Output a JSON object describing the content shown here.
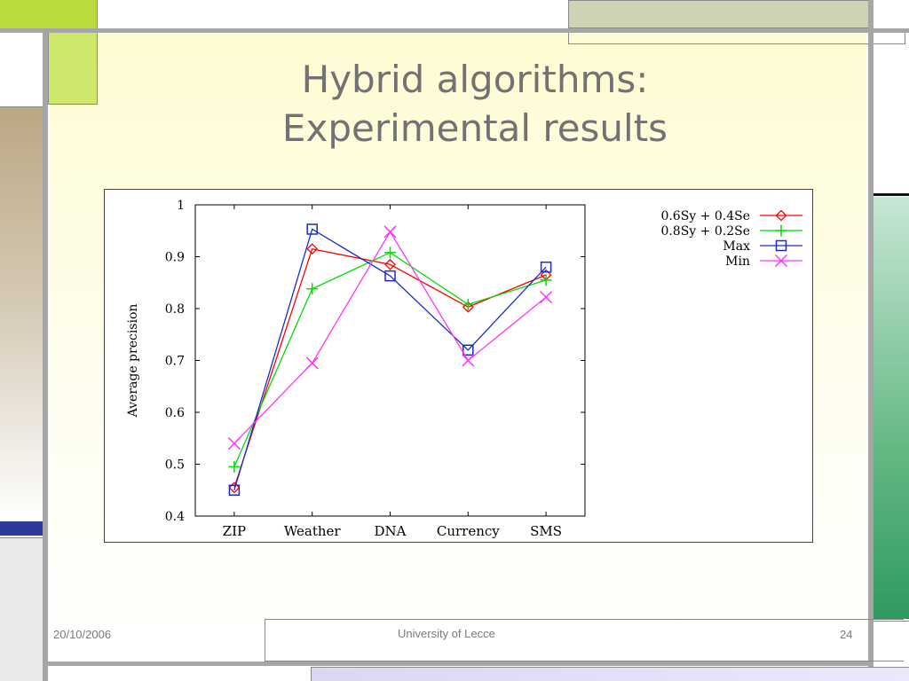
{
  "slide": {
    "title": "Hybrid algorithms:\nExperimental results",
    "footer": {
      "date": "20/10/2006",
      "organization": "University of Lecce",
      "page_number": "24"
    }
  },
  "colors": {
    "series_red": "#ff0000",
    "series_green": "#00dd00",
    "series_blue": "#1a2ccc",
    "series_magenta": "#ff33ff",
    "accent_green": "#cde86a",
    "accent_olive": "#d0d2b4",
    "accent_navy": "#2c3a9a",
    "accent_teal": "#2f9a60",
    "accent_tan": "#c2ad8e"
  },
  "chart_data": {
    "type": "line",
    "categories": [
      "ZIP",
      "Weather",
      "DNA",
      "Currency",
      "SMS"
    ],
    "ylabel": "Average precision",
    "xlabel": "",
    "ylim": [
      0.4,
      1.0
    ],
    "yticks": [
      "0.4",
      "0.5",
      "0.6",
      "0.7",
      "0.8",
      "0.9",
      "1"
    ],
    "legend_position": "top-right, outside plot",
    "grid": false,
    "series": [
      {
        "name": "0.6Sy + 0.4Se",
        "marker": "diamond",
        "color": "#ff0000",
        "values": [
          0.455,
          0.915,
          0.885,
          0.803,
          0.865
        ]
      },
      {
        "name": "0.8Sy + 0.2Se",
        "marker": "plus",
        "color": "#00dd00",
        "values": [
          0.495,
          0.838,
          0.908,
          0.808,
          0.855
        ]
      },
      {
        "name": "Max",
        "marker": "square",
        "color": "#1a2ccc",
        "values": [
          0.45,
          0.953,
          0.863,
          0.72,
          0.88
        ]
      },
      {
        "name": "Min",
        "marker": "x",
        "color": "#ff33ff",
        "values": [
          0.54,
          0.695,
          0.948,
          0.7,
          0.822
        ]
      }
    ]
  }
}
